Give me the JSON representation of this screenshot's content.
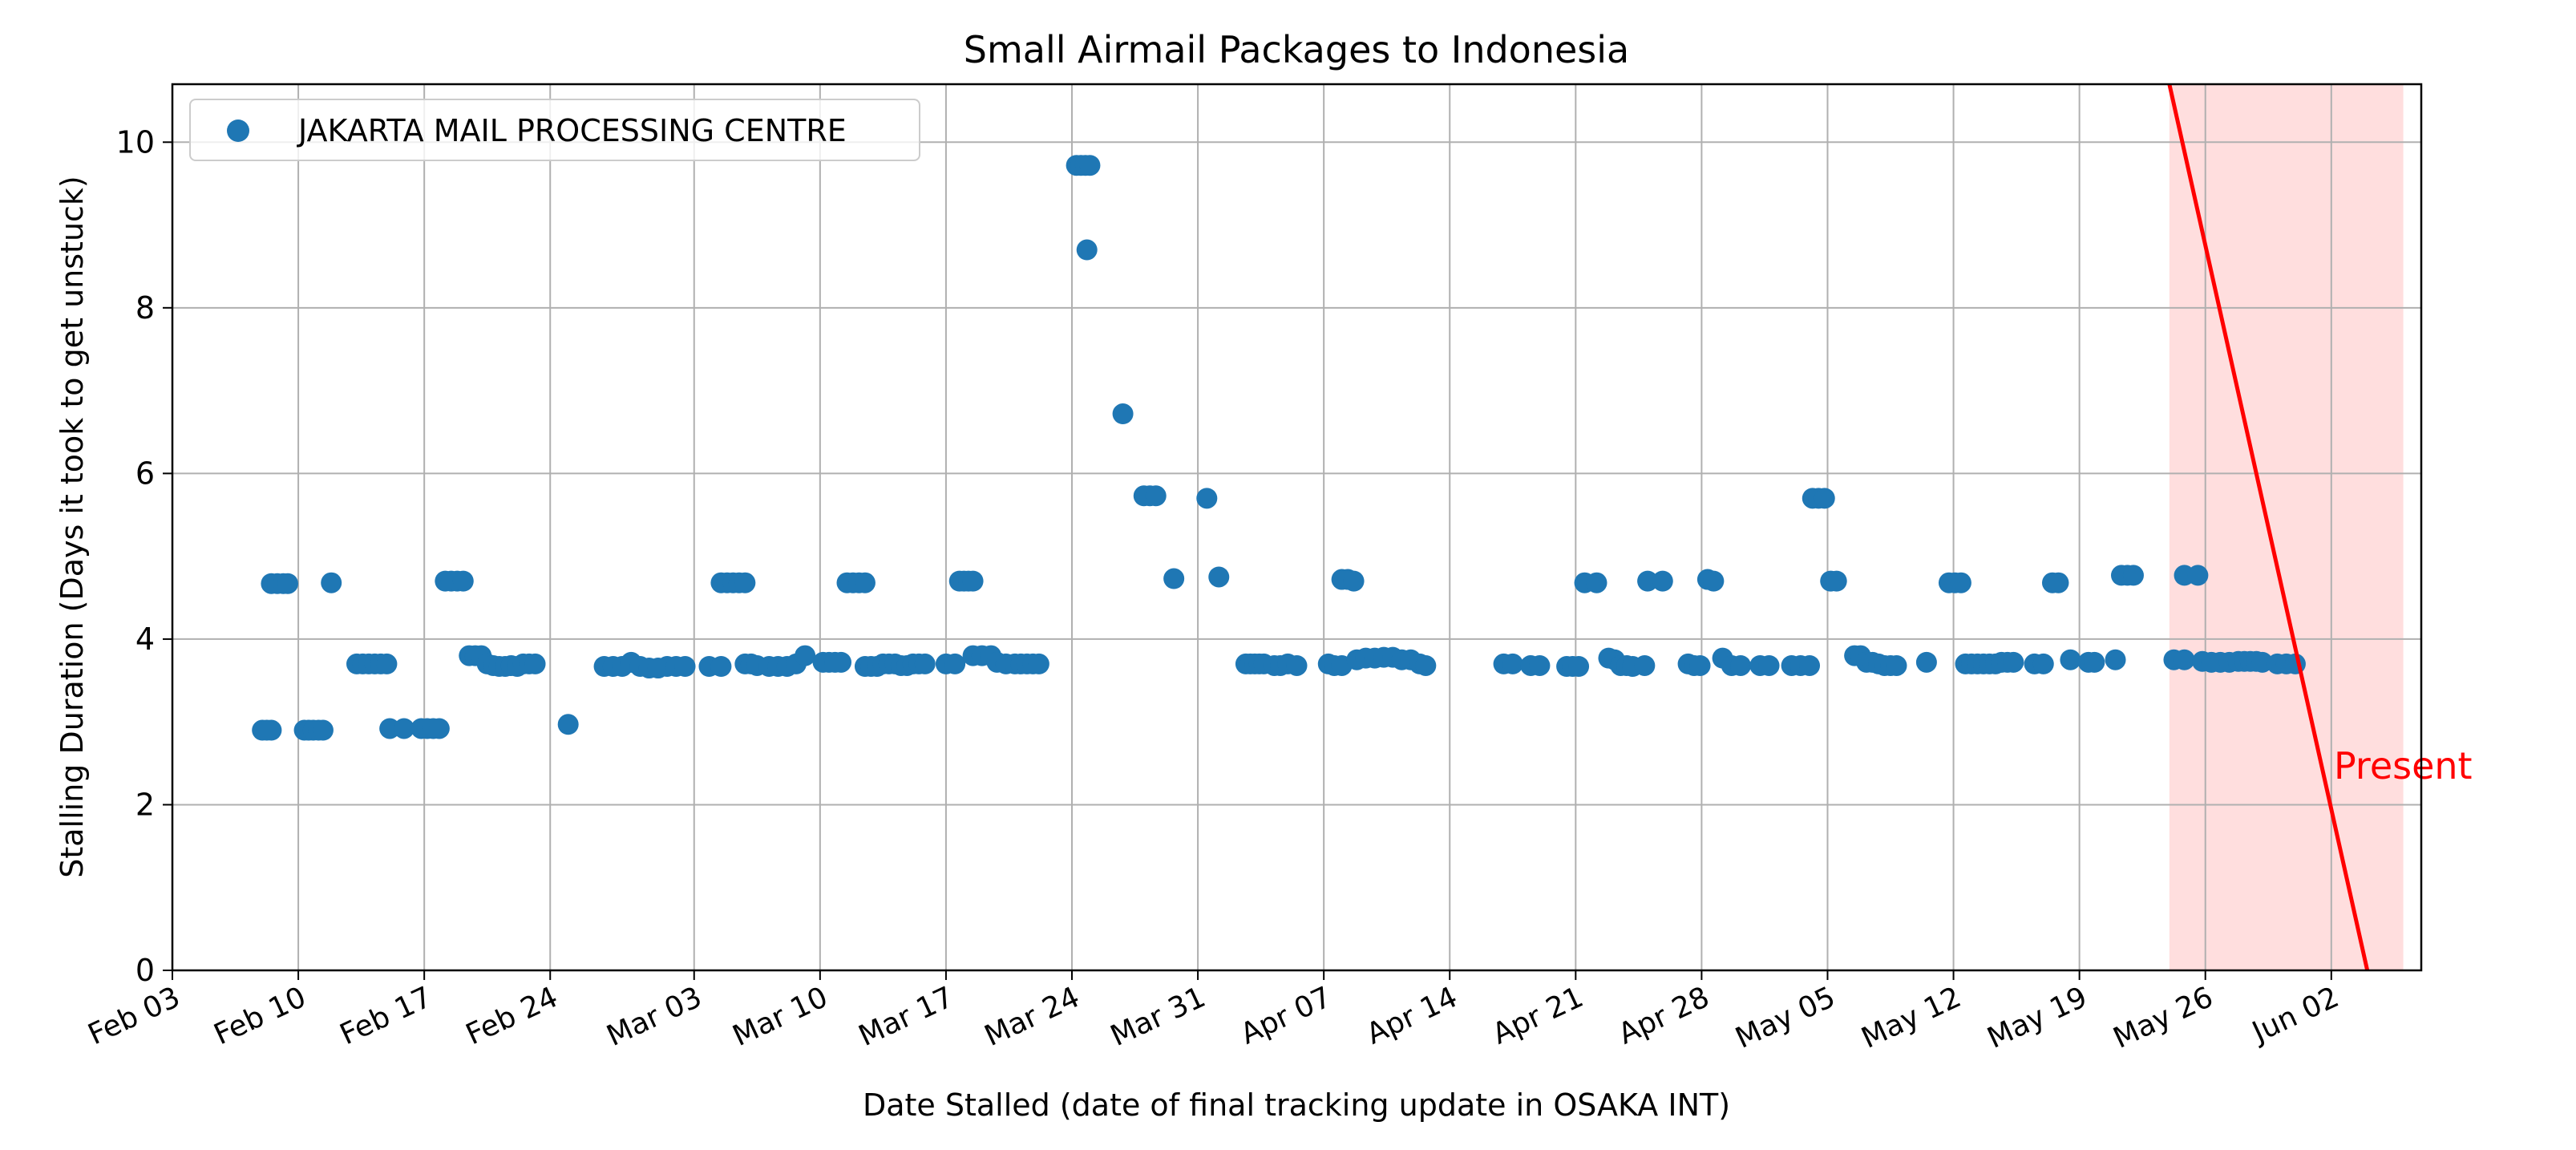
{
  "chart_data": {
    "type": "scatter",
    "title": "Small Airmail Packages to Indonesia",
    "xlabel": "Date Stalled (date of final tracking update in OSAKA INT)",
    "ylabel": "Stalling Duration (Days it took to get unstuck)",
    "x_axis_type": "date",
    "xlim": [
      "2024-02-03",
      "2024-06-07"
    ],
    "ylim": [
      0,
      10.7
    ],
    "grid": true,
    "x_ticks": [
      {
        "date": "2024-02-03",
        "label": "Feb 03"
      },
      {
        "date": "2024-02-10",
        "label": "Feb 10"
      },
      {
        "date": "2024-02-17",
        "label": "Feb 17"
      },
      {
        "date": "2024-02-24",
        "label": "Feb 24"
      },
      {
        "date": "2024-03-03",
        "label": "Mar 03"
      },
      {
        "date": "2024-03-10",
        "label": "Mar 10"
      },
      {
        "date": "2024-03-17",
        "label": "Mar 17"
      },
      {
        "date": "2024-03-24",
        "label": "Mar 24"
      },
      {
        "date": "2024-03-31",
        "label": "Mar 31"
      },
      {
        "date": "2024-04-07",
        "label": "Apr 07"
      },
      {
        "date": "2024-04-14",
        "label": "Apr 14"
      },
      {
        "date": "2024-04-21",
        "label": "Apr 21"
      },
      {
        "date": "2024-04-28",
        "label": "Apr 28"
      },
      {
        "date": "2024-05-05",
        "label": "May 05"
      },
      {
        "date": "2024-05-12",
        "label": "May 12"
      },
      {
        "date": "2024-05-19",
        "label": "May 19"
      },
      {
        "date": "2024-05-26",
        "label": "May 26"
      },
      {
        "date": "2024-06-02",
        "label": "Jun 02"
      }
    ],
    "y_ticks": [
      0,
      2,
      4,
      6,
      8,
      10
    ],
    "legend": {
      "placement": "top-left"
    },
    "series": [
      {
        "name": "JAKARTA MAIL PROCESSING CENTRE",
        "color": "#1f77b4",
        "points": [
          [
            "2024-02-08T00:00",
            2.9
          ],
          [
            "2024-02-08T06:00",
            2.9
          ],
          [
            "2024-02-08T12:00",
            2.9
          ],
          [
            "2024-02-08T12:00",
            4.67
          ],
          [
            "2024-02-08T20:00",
            4.67
          ],
          [
            "2024-02-09T04:00",
            4.67
          ],
          [
            "2024-02-09T10:00",
            4.67
          ],
          [
            "2024-02-10T08:00",
            2.9
          ],
          [
            "2024-02-10T14:00",
            2.9
          ],
          [
            "2024-02-10T20:00",
            2.9
          ],
          [
            "2024-02-11T03:00",
            2.9
          ],
          [
            "2024-02-11T09:00",
            2.9
          ],
          [
            "2024-02-11T20:00",
            4.68
          ],
          [
            "2024-02-13T06:00",
            3.7
          ],
          [
            "2024-02-13T14:00",
            3.7
          ],
          [
            "2024-02-13T22:00",
            3.7
          ],
          [
            "2024-02-14T06:00",
            3.7
          ],
          [
            "2024-02-14T14:00",
            3.7
          ],
          [
            "2024-02-14T22:00",
            3.7
          ],
          [
            "2024-02-15T02:00",
            2.92
          ],
          [
            "2024-02-15T21:00",
            2.92
          ],
          [
            "2024-02-16T20:00",
            2.92
          ],
          [
            "2024-02-17T04:00",
            2.92
          ],
          [
            "2024-02-17T12:00",
            2.92
          ],
          [
            "2024-02-17T20:00",
            2.92
          ],
          [
            "2024-02-18T04:00",
            4.7
          ],
          [
            "2024-02-18T12:00",
            4.7
          ],
          [
            "2024-02-18T20:00",
            4.7
          ],
          [
            "2024-02-19T04:00",
            4.7
          ],
          [
            "2024-02-19T12:00",
            3.8
          ],
          [
            "2024-02-19T20:00",
            3.8
          ],
          [
            "2024-02-20T04:00",
            3.8
          ],
          [
            "2024-02-20T12:00",
            3.7
          ],
          [
            "2024-02-20T20:00",
            3.68
          ],
          [
            "2024-02-21T04:00",
            3.67
          ],
          [
            "2024-02-21T12:00",
            3.67
          ],
          [
            "2024-02-21T20:00",
            3.68
          ],
          [
            "2024-02-22T04:00",
            3.67
          ],
          [
            "2024-02-22T12:00",
            3.7
          ],
          [
            "2024-02-22T20:00",
            3.7
          ],
          [
            "2024-02-23T04:00",
            3.7
          ],
          [
            "2024-02-25T00:00",
            2.97
          ],
          [
            "2024-02-27T00:00",
            3.67
          ],
          [
            "2024-02-27T12:00",
            3.67
          ],
          [
            "2024-02-28T00:00",
            3.67
          ],
          [
            "2024-02-28T12:00",
            3.72
          ],
          [
            "2024-02-29T00:00",
            3.67
          ],
          [
            "2024-02-29T12:00",
            3.65
          ],
          [
            "2024-03-01T00:00",
            3.65
          ],
          [
            "2024-03-01T12:00",
            3.67
          ],
          [
            "2024-03-02T00:00",
            3.67
          ],
          [
            "2024-03-02T12:00",
            3.67
          ],
          [
            "2024-03-03T20:00",
            3.67
          ],
          [
            "2024-03-04T12:00",
            3.67
          ],
          [
            "2024-03-04T12:00",
            4.68
          ],
          [
            "2024-03-04T20:00",
            4.68
          ],
          [
            "2024-03-05T04:00",
            4.68
          ],
          [
            "2024-03-05T12:00",
            4.68
          ],
          [
            "2024-03-05T20:00",
            4.68
          ],
          [
            "2024-03-05T20:00",
            3.7
          ],
          [
            "2024-03-06T04:00",
            3.7
          ],
          [
            "2024-03-06T12:00",
            3.68
          ],
          [
            "2024-03-07T04:00",
            3.67
          ],
          [
            "2024-03-07T16:00",
            3.67
          ],
          [
            "2024-03-08T04:00",
            3.67
          ],
          [
            "2024-03-08T16:00",
            3.7
          ],
          [
            "2024-03-09T04:00",
            3.8
          ],
          [
            "2024-03-10T04:00",
            3.72
          ],
          [
            "2024-03-10T12:00",
            3.72
          ],
          [
            "2024-03-10T20:00",
            3.72
          ],
          [
            "2024-03-11T04:00",
            3.72
          ],
          [
            "2024-03-11T12:00",
            4.68
          ],
          [
            "2024-03-11T20:00",
            4.68
          ],
          [
            "2024-03-12T04:00",
            4.68
          ],
          [
            "2024-03-12T12:00",
            4.68
          ],
          [
            "2024-03-12T12:00",
            3.67
          ],
          [
            "2024-03-12T20:00",
            3.67
          ],
          [
            "2024-03-13T04:00",
            3.67
          ],
          [
            "2024-03-13T12:00",
            3.7
          ],
          [
            "2024-03-13T20:00",
            3.7
          ],
          [
            "2024-03-14T04:00",
            3.7
          ],
          [
            "2024-03-14T12:00",
            3.68
          ],
          [
            "2024-03-14T20:00",
            3.68
          ],
          [
            "2024-03-15T04:00",
            3.7
          ],
          [
            "2024-03-15T12:00",
            3.7
          ],
          [
            "2024-03-15T20:00",
            3.7
          ],
          [
            "2024-03-17T00:00",
            3.7
          ],
          [
            "2024-03-17T12:00",
            3.7
          ],
          [
            "2024-03-17T18:00",
            4.7
          ],
          [
            "2024-03-18T00:00",
            4.7
          ],
          [
            "2024-03-18T06:00",
            4.7
          ],
          [
            "2024-03-18T12:00",
            4.7
          ],
          [
            "2024-03-18T12:00",
            3.8
          ],
          [
            "2024-03-19T00:00",
            3.8
          ],
          [
            "2024-03-19T12:00",
            3.8
          ],
          [
            "2024-03-19T20:00",
            3.72
          ],
          [
            "2024-03-20T08:00",
            3.7
          ],
          [
            "2024-03-20T20:00",
            3.7
          ],
          [
            "2024-03-21T04:00",
            3.7
          ],
          [
            "2024-03-21T12:00",
            3.7
          ],
          [
            "2024-03-21T20:00",
            3.7
          ],
          [
            "2024-03-22T04:00",
            3.7
          ],
          [
            "2024-03-24T06:00",
            9.72
          ],
          [
            "2024-03-24T12:00",
            9.72
          ],
          [
            "2024-03-24T18:00",
            9.72
          ],
          [
            "2024-03-25T00:00",
            9.72
          ],
          [
            "2024-03-24T20:00",
            8.7
          ],
          [
            "2024-03-26T20:00",
            6.72
          ],
          [
            "2024-03-28T00:00",
            5.73
          ],
          [
            "2024-03-28T08:00",
            5.73
          ],
          [
            "2024-03-28T16:00",
            5.73
          ],
          [
            "2024-03-29T16:00",
            4.73
          ],
          [
            "2024-03-31T12:00",
            5.7
          ],
          [
            "2024-04-01T04:00",
            4.75
          ],
          [
            "2024-04-02T16:00",
            3.7
          ],
          [
            "2024-04-02T22:00",
            3.7
          ],
          [
            "2024-04-03T04:00",
            3.7
          ],
          [
            "2024-04-03T10:00",
            3.7
          ],
          [
            "2024-04-03T16:00",
            3.7
          ],
          [
            "2024-04-04T06:00",
            3.68
          ],
          [
            "2024-04-04T14:00",
            3.68
          ],
          [
            "2024-04-05T00:00",
            3.7
          ],
          [
            "2024-04-05T12:00",
            3.68
          ],
          [
            "2024-04-07T06:00",
            3.7
          ],
          [
            "2024-04-07T14:00",
            3.68
          ],
          [
            "2024-04-08T00:00",
            3.68
          ],
          [
            "2024-04-08T00:00",
            4.72
          ],
          [
            "2024-04-08T08:00",
            4.72
          ],
          [
            "2024-04-08T16:00",
            4.7
          ],
          [
            "2024-04-08T20:00",
            3.75
          ],
          [
            "2024-04-09T08:00",
            3.77
          ],
          [
            "2024-04-09T20:00",
            3.77
          ],
          [
            "2024-04-10T08:00",
            3.78
          ],
          [
            "2024-04-10T20:00",
            3.78
          ],
          [
            "2024-04-11T08:00",
            3.75
          ],
          [
            "2024-04-11T20:00",
            3.75
          ],
          [
            "2024-04-12T08:00",
            3.7
          ],
          [
            "2024-04-12T16:00",
            3.68
          ],
          [
            "2024-04-17T00:00",
            3.7
          ],
          [
            "2024-04-17T12:00",
            3.7
          ],
          [
            "2024-04-18T12:00",
            3.68
          ],
          [
            "2024-04-19T00:00",
            3.68
          ],
          [
            "2024-04-20T12:00",
            3.67
          ],
          [
            "2024-04-20T20:00",
            3.67
          ],
          [
            "2024-04-21T04:00",
            3.67
          ],
          [
            "2024-04-21T12:00",
            4.68
          ],
          [
            "2024-04-22T04:00",
            4.68
          ],
          [
            "2024-04-22T20:00",
            3.77
          ],
          [
            "2024-04-23T04:00",
            3.75
          ],
          [
            "2024-04-23T12:00",
            3.68
          ],
          [
            "2024-04-23T20:00",
            3.68
          ],
          [
            "2024-04-24T04:00",
            3.67
          ],
          [
            "2024-04-24T20:00",
            3.68
          ],
          [
            "2024-04-25T00:00",
            4.7
          ],
          [
            "2024-04-25T20:00",
            4.7
          ],
          [
            "2024-04-27T06:00",
            3.7
          ],
          [
            "2024-04-27T14:00",
            3.68
          ],
          [
            "2024-04-27T22:00",
            3.68
          ],
          [
            "2024-04-28T08:00",
            4.72
          ],
          [
            "2024-04-28T16:00",
            4.7
          ],
          [
            "2024-04-29T04:00",
            3.77
          ],
          [
            "2024-04-29T16:00",
            3.68
          ],
          [
            "2024-04-30T04:00",
            3.68
          ],
          [
            "2024-05-01T06:00",
            3.68
          ],
          [
            "2024-05-01T18:00",
            3.68
          ],
          [
            "2024-05-03T00:00",
            3.68
          ],
          [
            "2024-05-03T12:00",
            3.68
          ],
          [
            "2024-05-04T00:00",
            3.68
          ],
          [
            "2024-05-04T04:00",
            5.7
          ],
          [
            "2024-05-04T12:00",
            5.7
          ],
          [
            "2024-05-04T20:00",
            5.7
          ],
          [
            "2024-05-05T04:00",
            4.7
          ],
          [
            "2024-05-05T12:00",
            4.7
          ],
          [
            "2024-05-06T12:00",
            3.8
          ],
          [
            "2024-05-06T20:00",
            3.8
          ],
          [
            "2024-05-07T04:00",
            3.72
          ],
          [
            "2024-05-07T12:00",
            3.72
          ],
          [
            "2024-05-07T20:00",
            3.7
          ],
          [
            "2024-05-08T04:00",
            3.68
          ],
          [
            "2024-05-08T12:00",
            3.68
          ],
          [
            "2024-05-08T20:00",
            3.68
          ],
          [
            "2024-05-10T12:00",
            3.72
          ],
          [
            "2024-05-11T18:00",
            4.68
          ],
          [
            "2024-05-12T02:00",
            4.68
          ],
          [
            "2024-05-12T10:00",
            4.68
          ],
          [
            "2024-05-12T16:00",
            3.7
          ],
          [
            "2024-05-13T00:00",
            3.7
          ],
          [
            "2024-05-13T08:00",
            3.7
          ],
          [
            "2024-05-13T16:00",
            3.7
          ],
          [
            "2024-05-14T00:00",
            3.7
          ],
          [
            "2024-05-14T08:00",
            3.7
          ],
          [
            "2024-05-14T16:00",
            3.72
          ],
          [
            "2024-05-15T00:00",
            3.72
          ],
          [
            "2024-05-15T08:00",
            3.72
          ],
          [
            "2024-05-16T12:00",
            3.7
          ],
          [
            "2024-05-17T00:00",
            3.7
          ],
          [
            "2024-05-17T12:00",
            4.68
          ],
          [
            "2024-05-17T20:00",
            4.68
          ],
          [
            "2024-05-18T12:00",
            3.75
          ],
          [
            "2024-05-19T12:00",
            3.72
          ],
          [
            "2024-05-19T20:00",
            3.72
          ],
          [
            "2024-05-21T00:00",
            3.75
          ],
          [
            "2024-05-21T08:00",
            4.77
          ],
          [
            "2024-05-21T16:00",
            4.77
          ],
          [
            "2024-05-22T00:00",
            4.77
          ],
          [
            "2024-05-24T06:00",
            3.75
          ],
          [
            "2024-05-24T20:00",
            3.75
          ],
          [
            "2024-05-24T20:00",
            4.77
          ],
          [
            "2024-05-25T14:00",
            4.77
          ],
          [
            "2024-05-25T20:00",
            3.73
          ],
          [
            "2024-05-26T08:00",
            3.72
          ],
          [
            "2024-05-26T20:00",
            3.72
          ],
          [
            "2024-05-27T08:00",
            3.72
          ],
          [
            "2024-05-27T20:00",
            3.73
          ],
          [
            "2024-05-28T04:00",
            3.73
          ],
          [
            "2024-05-28T12:00",
            3.73
          ],
          [
            "2024-05-28T20:00",
            3.73
          ],
          [
            "2024-05-29T04:00",
            3.72
          ],
          [
            "2024-05-30T00:00",
            3.7
          ],
          [
            "2024-05-30T12:00",
            3.7
          ],
          [
            "2024-05-31T00:00",
            3.7
          ]
        ]
      }
    ],
    "annotations": [
      {
        "text": "Present",
        "color": "#ff0000",
        "line": [
          [
            "2024-05-24T00:00",
            10.7
          ],
          [
            "2024-06-04T00:00",
            0
          ]
        ],
        "shaded_region": [
          "2024-05-24T00:00",
          "2024-06-06T00:00"
        ],
        "shade_color": "#ffdede"
      }
    ]
  }
}
